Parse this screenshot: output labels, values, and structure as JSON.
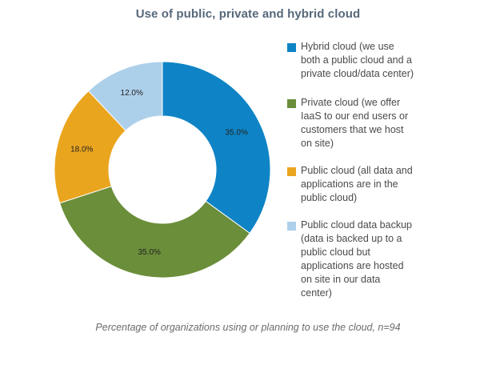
{
  "chart_data": {
    "type": "pie",
    "style": "donut",
    "title": "Use of public, private and hybrid cloud",
    "caption": "Percentage of organizations using or planning to use the cloud, n=94",
    "categories": [
      "Hybrid cloud (we use both a public cloud and a private cloud/data center)",
      "Private cloud (we offer IaaS to our end users or customers that we host on site)",
      "Public cloud (all data and applications are in the public cloud)",
      "Public cloud data backup (data is backed up to a public cloud but applications are hosted on site in our data center)"
    ],
    "values": [
      35.0,
      35.0,
      18.0,
      12.0
    ],
    "value_labels": [
      "35.0%",
      "35.0%",
      "18.0%",
      "12.0%"
    ],
    "colors": [
      "#0e84c6",
      "#6b8e3a",
      "#eaa51f",
      "#add0ea"
    ],
    "legend_position": "right",
    "legend": [
      {
        "label": "Hybrid cloud (we use\nboth a public cloud and a\nprivate cloud/data center)",
        "color": "#0e84c6"
      },
      {
        "label": "Private cloud (we offer\nIaaS to our end users or\ncustomers that we host\non site)",
        "color": "#6b8e3a"
      },
      {
        "label": "Public cloud (all data and\napplications are in the\npublic cloud)",
        "color": "#eaa51f"
      },
      {
        "label": "Public cloud data backup\n(data is backed up to a\npublic cloud but\napplications are hosted\non site in our data\ncenter)",
        "color": "#add0ea"
      }
    ]
  }
}
